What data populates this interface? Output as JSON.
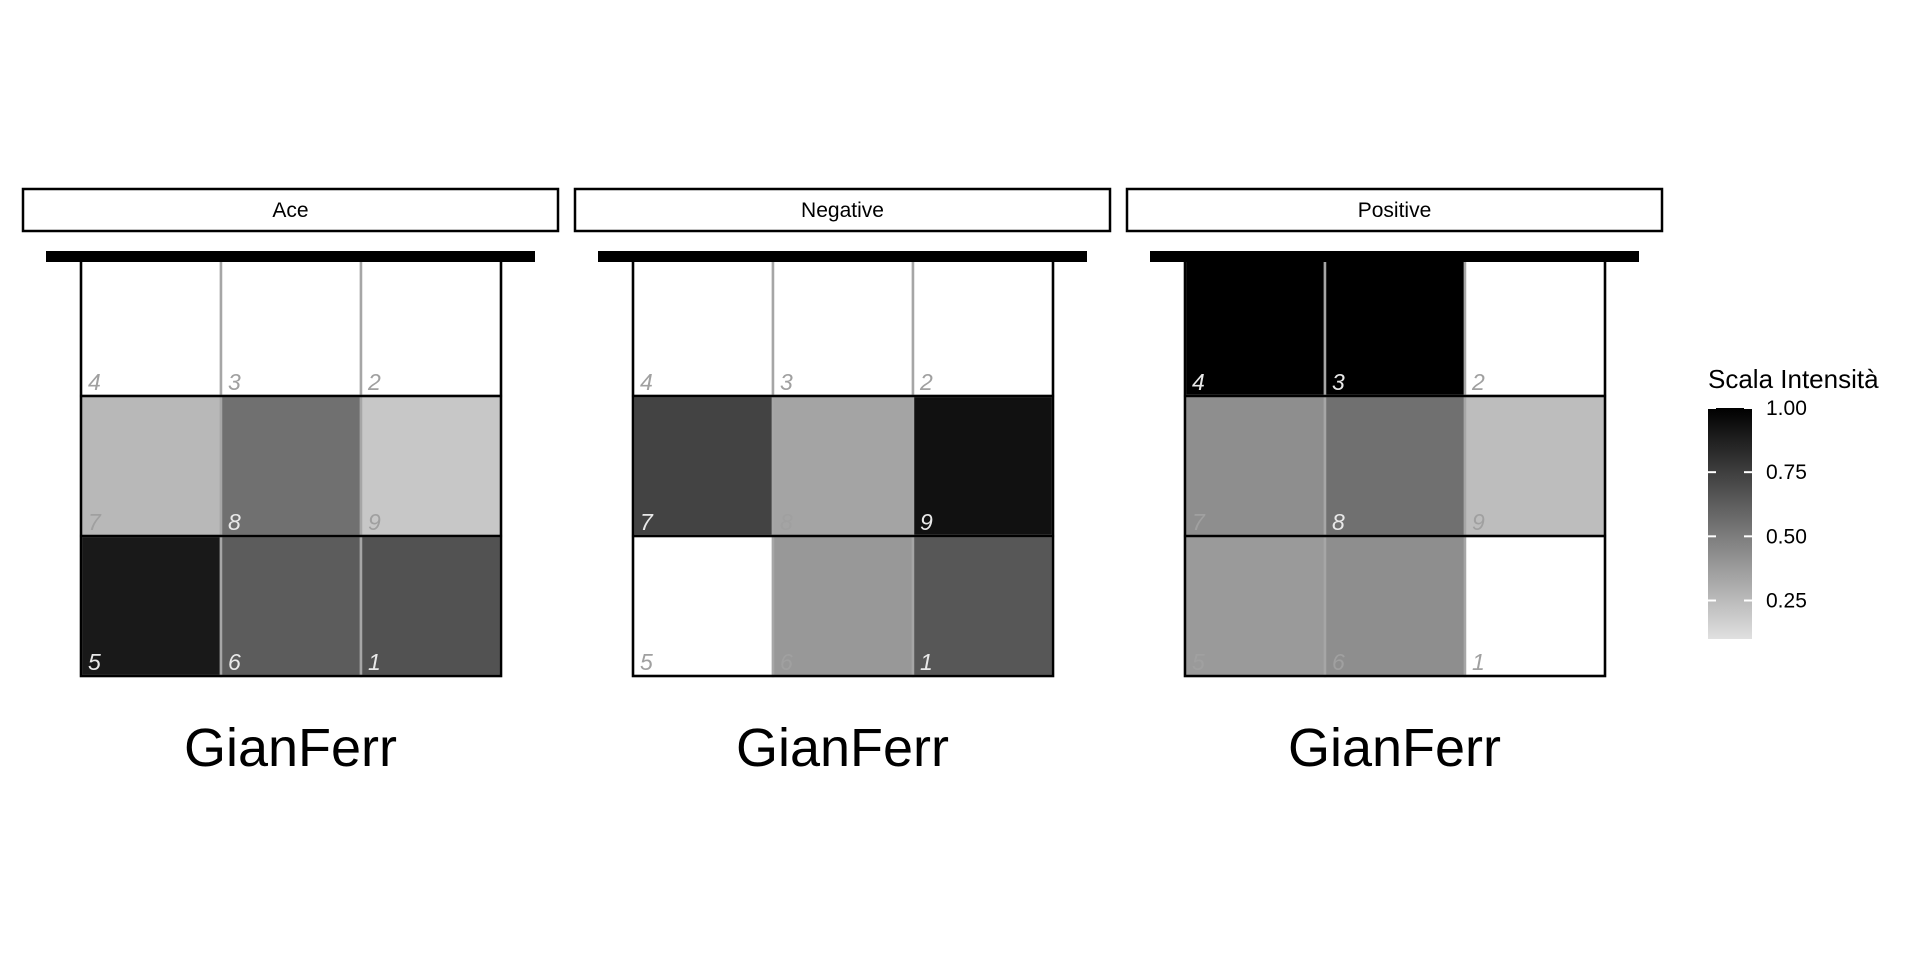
{
  "chart_data": {
    "type": "heatmap",
    "title": "",
    "xlabel": "",
    "ylabel": "",
    "grid": false,
    "legend": {
      "title": "Scala Intensità",
      "placement": "right",
      "range": [
        0.1,
        1.0
      ],
      "ticks": [
        1.0,
        0.75,
        0.5,
        0.25
      ],
      "tick_labels": [
        "1.00",
        "0.75",
        "0.50",
        "0.25"
      ],
      "low_color": "#e0e0e0",
      "high_color": "#000000"
    },
    "panels": [
      {
        "label": "Ace",
        "caption": "GianFerr",
        "rows": [
          [
            {
              "zone": "4",
              "value": null
            },
            {
              "zone": "3",
              "value": null
            },
            {
              "zone": "2",
              "value": null
            }
          ],
          [
            {
              "zone": "7",
              "value": 0.26
            },
            {
              "zone": "8",
              "value": 0.55
            },
            {
              "zone": "9",
              "value": 0.2
            }
          ],
          [
            {
              "zone": "5",
              "value": 0.9
            },
            {
              "zone": "6",
              "value": 0.63
            },
            {
              "zone": "1",
              "value": 0.67
            }
          ]
        ]
      },
      {
        "label": "Negative",
        "caption": "GianFerr",
        "rows": [
          [
            {
              "zone": "4",
              "value": null
            },
            {
              "zone": "3",
              "value": null
            },
            {
              "zone": "2",
              "value": null
            }
          ],
          [
            {
              "zone": "7",
              "value": 0.73
            },
            {
              "zone": "8",
              "value": 0.34
            },
            {
              "zone": "9",
              "value": 0.93
            }
          ],
          [
            {
              "zone": "5",
              "value": null
            },
            {
              "zone": "6",
              "value": 0.39
            },
            {
              "zone": "1",
              "value": 0.65
            }
          ]
        ]
      },
      {
        "label": "Positive",
        "caption": "GianFerr",
        "rows": [
          [
            {
              "zone": "4",
              "value": 1.0
            },
            {
              "zone": "3",
              "value": 1.0
            },
            {
              "zone": "2",
              "value": null
            }
          ],
          [
            {
              "zone": "7",
              "value": 0.43
            },
            {
              "zone": "8",
              "value": 0.55
            },
            {
              "zone": "9",
              "value": 0.24
            }
          ],
          [
            {
              "zone": "5",
              "value": 0.38
            },
            {
              "zone": "6",
              "value": 0.43
            },
            {
              "zone": "1",
              "value": null
            }
          ]
        ]
      }
    ]
  }
}
